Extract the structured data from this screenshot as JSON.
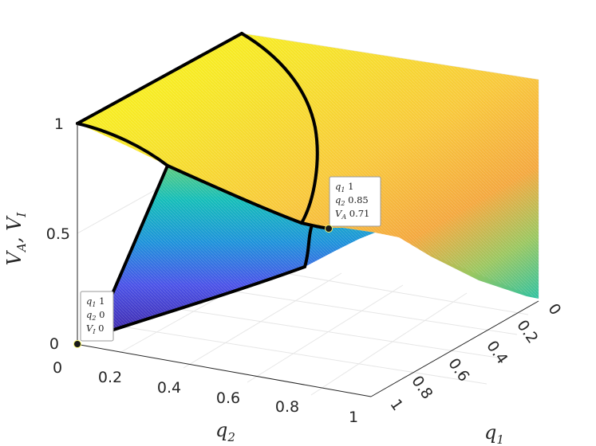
{
  "chart_data": {
    "type": "surface",
    "xlabel": {
      "main": "q",
      "sub": "1"
    },
    "ylabel": {
      "main": "q",
      "sub": "2"
    },
    "zlabel": "V_A, V_I",
    "x_ticks": [
      "0",
      "0.2",
      "0.4",
      "0.6",
      "0.8",
      "1"
    ],
    "y_ticks": [
      "0",
      "0.2",
      "0.4",
      "0.6",
      "0.8",
      "1"
    ],
    "z_ticks": [
      "0",
      "0.5",
      "1"
    ],
    "xlim": [
      0,
      1
    ],
    "ylim": [
      0,
      1
    ],
    "zlim": [
      0,
      1
    ],
    "grid": true,
    "colormap": "parula",
    "boundary_color": "#000000",
    "datatips": [
      {
        "lines": [
          {
            "var": "q",
            "sub": "1",
            "value": "1"
          },
          {
            "var": "q",
            "sub": "2",
            "value": "0.85"
          },
          {
            "var": "V",
            "sub": "A",
            "value": "0.71"
          }
        ],
        "point": {
          "q1": 1,
          "q2": 0.85,
          "v": 0.71
        }
      },
      {
        "lines": [
          {
            "var": "q",
            "sub": "1",
            "value": "1"
          },
          {
            "var": "q",
            "sub": "2",
            "value": "0"
          },
          {
            "var": "V",
            "sub": "I",
            "value": "0"
          }
        ],
        "point": {
          "q1": 1,
          "q2": 0,
          "v": 0
        }
      }
    ]
  }
}
